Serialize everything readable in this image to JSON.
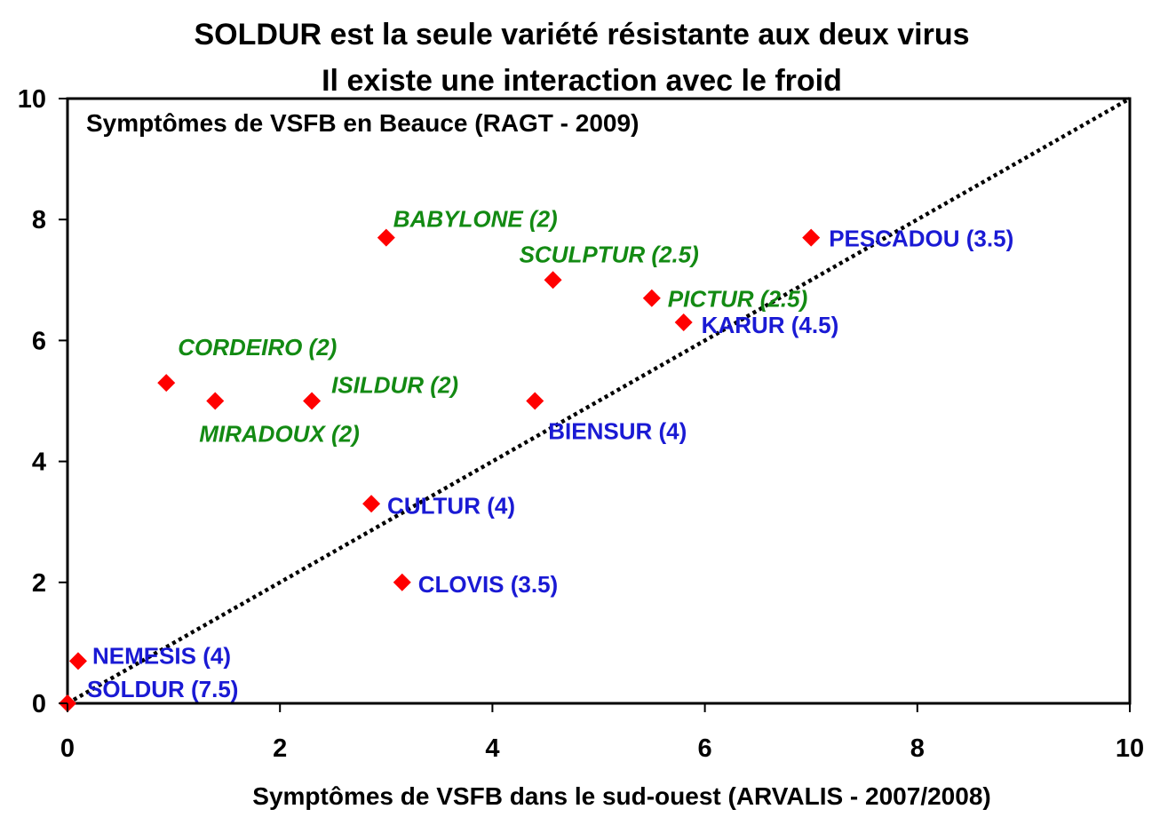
{
  "chart_data": {
    "type": "scatter",
    "title_lines": [
      "SOLDUR est la seule variété résistante aux deux virus",
      "Il existe une interaction avec le froid"
    ],
    "inner_title": "Symptômes de VSFB en Beauce (RAGT - 2009)",
    "xlabel": "Symptômes de VSFB dans le sud-ouest (ARVALIS - 2007/2008)",
    "ylabel": "",
    "xlim": [
      0,
      10
    ],
    "ylim": [
      0,
      10
    ],
    "xticks": [
      "0",
      "2",
      "4",
      "6",
      "8",
      "10"
    ],
    "yticks": [
      "0",
      "2",
      "4",
      "6",
      "8",
      "10"
    ],
    "reference_line": {
      "from": [
        0,
        0
      ],
      "to": [
        10,
        10
      ],
      "style": "dotted",
      "color": "#000000"
    },
    "marker_color": "#ff0000",
    "label_colors": {
      "green": "#138a13",
      "blue": "#1a1ad4"
    },
    "points": [
      {
        "x": 3.0,
        "y": 7.7,
        "label": "BABYLONE (2)",
        "group": "green"
      },
      {
        "x": 4.57,
        "y": 7.0,
        "label": "SCULPTUR (2.5)",
        "group": "green"
      },
      {
        "x": 5.5,
        "y": 6.7,
        "label": "PICTUR (2.5)",
        "group": "green"
      },
      {
        "x": 0.93,
        "y": 5.3,
        "label": "CORDEIRO (2)",
        "group": "green"
      },
      {
        "x": 1.39,
        "y": 5.0,
        "label": "MIRADOUX (2)",
        "group": "green"
      },
      {
        "x": 2.3,
        "y": 5.0,
        "label": "ISILDUR (2)",
        "group": "green"
      },
      {
        "x": 7.0,
        "y": 7.7,
        "label": "PESCADOU (3.5)",
        "group": "blue"
      },
      {
        "x": 5.8,
        "y": 6.3,
        "label": "KARUR (4.5)",
        "group": "blue"
      },
      {
        "x": 4.4,
        "y": 5.0,
        "label": "BIENSUR (4)",
        "group": "blue"
      },
      {
        "x": 2.86,
        "y": 3.3,
        "label": "CULTUR (4)",
        "group": "blue"
      },
      {
        "x": 3.15,
        "y": 2.0,
        "label": "CLOVIS (3.5)",
        "group": "blue"
      },
      {
        "x": 0.1,
        "y": 0.7,
        "label": "NEMESIS (4)",
        "group": "blue"
      },
      {
        "x": 0.0,
        "y": 0.0,
        "label": "SOLDUR (7.5)",
        "group": "blue"
      }
    ]
  }
}
